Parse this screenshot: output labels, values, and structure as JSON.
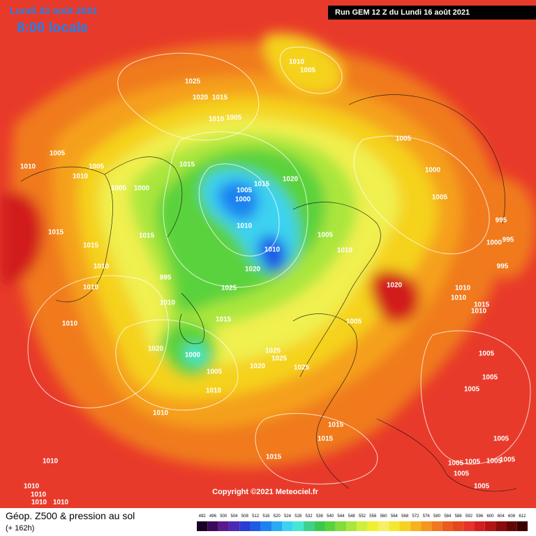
{
  "header": {
    "date": "Lundi 23 août 2021",
    "time": "8:00 locale",
    "run": "Run GEM 12 Z du Lundi 16 août 2021"
  },
  "copyright": "Copyright ©2021 Meteociel.fr",
  "footer": {
    "title": "Géop. Z500 & pression au sol",
    "lead": "(+ 162h)"
  },
  "legend": {
    "values": [
      492,
      496,
      500,
      504,
      508,
      512,
      516,
      520,
      524,
      528,
      532,
      536,
      540,
      544,
      548,
      552,
      556,
      560,
      564,
      568,
      572,
      576,
      580,
      584,
      588,
      592,
      596,
      600,
      604,
      608,
      612
    ],
    "colors": [
      "#1a0026",
      "#3c0a5a",
      "#5a1a8c",
      "#4a2ab4",
      "#2a3cd2",
      "#1e5ae6",
      "#1e82f0",
      "#28aaf5",
      "#3cd2f0",
      "#46e6d2",
      "#3cd28c",
      "#3cc850",
      "#5ad23c",
      "#82dc3c",
      "#aae63c",
      "#d2ee3c",
      "#f0f032",
      "#f5f064",
      "#f5e632",
      "#f5d21e",
      "#f5b41e",
      "#f5961e",
      "#f0781e",
      "#eb5a1e",
      "#e6461e",
      "#e63228",
      "#d21e1e",
      "#b41414",
      "#8c0a0a",
      "#640505",
      "#3c0000"
    ]
  },
  "isobar_labels": [
    1010,
    1005,
    1025,
    1020,
    1015,
    1010,
    1005,
    1005,
    1005,
    1010,
    1005,
    1015,
    1010,
    1020,
    1000,
    1005,
    1000,
    1005,
    1015,
    1000,
    1005,
    995,
    1015,
    1010,
    1015,
    1005,
    1000,
    995,
    1015,
    1010,
    1010,
    1010,
    995,
    1020,
    995,
    1010,
    1025,
    1020,
    1010,
    1010,
    1015,
    1010,
    1010,
    1015,
    1010,
    1005,
    1020,
    1025,
    1005,
    1000,
    1025,
    1020,
    1025,
    1005,
    1005,
    1010,
    1005,
    1010,
    1015,
    1015,
    1005,
    1015,
    1010,
    1005,
    1005,
    1005,
    1005,
    1005,
    1010,
    1005,
    1010,
    1010,
    1010
  ]
}
